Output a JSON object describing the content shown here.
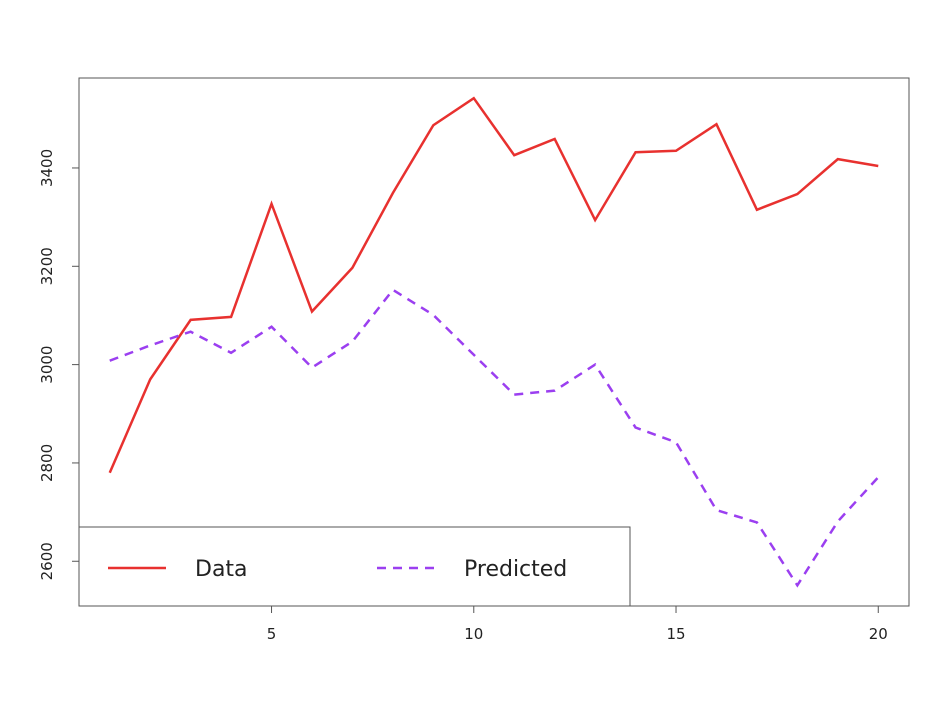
{
  "chart_data": {
    "type": "line",
    "x": [
      1,
      2,
      3,
      4,
      5,
      6,
      7,
      8,
      9,
      10,
      11,
      12,
      13,
      14,
      15,
      16,
      17,
      18,
      19,
      20
    ],
    "series": [
      {
        "name": "Data",
        "color": "#e8312f",
        "dash": "solid",
        "values": [
          2780,
          2970,
          3091,
          3097,
          3327,
          3108,
          3197,
          3349,
          3487,
          3542,
          3426,
          3459,
          3294,
          3432,
          3435,
          3489,
          3315,
          3347,
          3418,
          3404
        ]
      },
      {
        "name": "Predicted",
        "color": "#9b3ff0",
        "dash": "dashed",
        "values": [
          3008,
          3039,
          3067,
          3024,
          3077,
          2994,
          3047,
          3152,
          3101,
          3020,
          2939,
          2947,
          3000,
          2872,
          2842,
          2704,
          2679,
          2551,
          2681,
          2771
        ]
      }
    ],
    "xlim": [
      0.24,
      20.76
    ],
    "xticks": [
      5,
      10,
      15,
      20
    ],
    "ylim": [
      2509,
      3583
    ],
    "yticks": [
      2600,
      2800,
      3000,
      3200,
      3400
    ],
    "legend": "bottomleft"
  }
}
